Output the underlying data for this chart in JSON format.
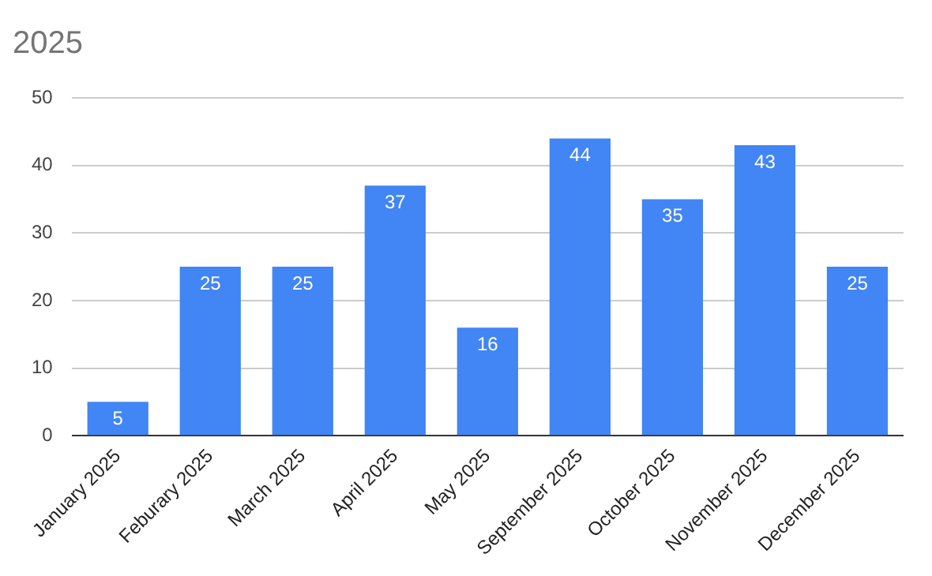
{
  "chart_data": {
    "type": "bar",
    "title": "2025",
    "categories": [
      "January 2025",
      "Feburary 2025",
      "March 2025",
      "April 2025",
      "May 2025",
      "September 2025",
      "October 2025",
      "November 2025",
      "December 2025"
    ],
    "values": [
      5,
      25,
      25,
      37,
      16,
      44,
      35,
      43,
      25
    ],
    "color": "#4285f4",
    "ylim": [
      0,
      50
    ],
    "yticks": [
      0,
      10,
      20,
      30,
      40,
      50
    ],
    "grid": "y",
    "legend": false,
    "data_labels": true
  }
}
